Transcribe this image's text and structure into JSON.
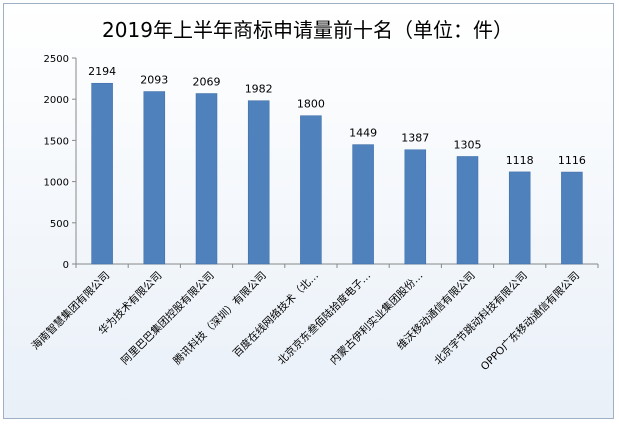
{
  "chart_data": {
    "type": "bar",
    "title": "2019年上半年商标申请量前十名（单位：件）",
    "categories": [
      "海南智慧集团有限公司",
      "华为技术有限公司",
      "阿里巴巴集团控股有限公司",
      "腾讯科技（深圳）有限公司",
      "百度在线网络技术（北…",
      "北京京东叁佰陆拾度电子…",
      "内蒙古伊利实业集团股份…",
      "维沃移动通信有限公司",
      "北京字节跳动科技有限公司",
      "OPPO广东移动通信有限公司"
    ],
    "values": [
      2194,
      2093,
      2069,
      1982,
      1800,
      1449,
      1387,
      1305,
      1118,
      1116
    ],
    "yticks": [
      "0",
      "500",
      "1000",
      "1500",
      "2000",
      "2500"
    ],
    "ylim": [
      0,
      2500
    ],
    "bar_color": "#4f81bd",
    "grid": false
  }
}
